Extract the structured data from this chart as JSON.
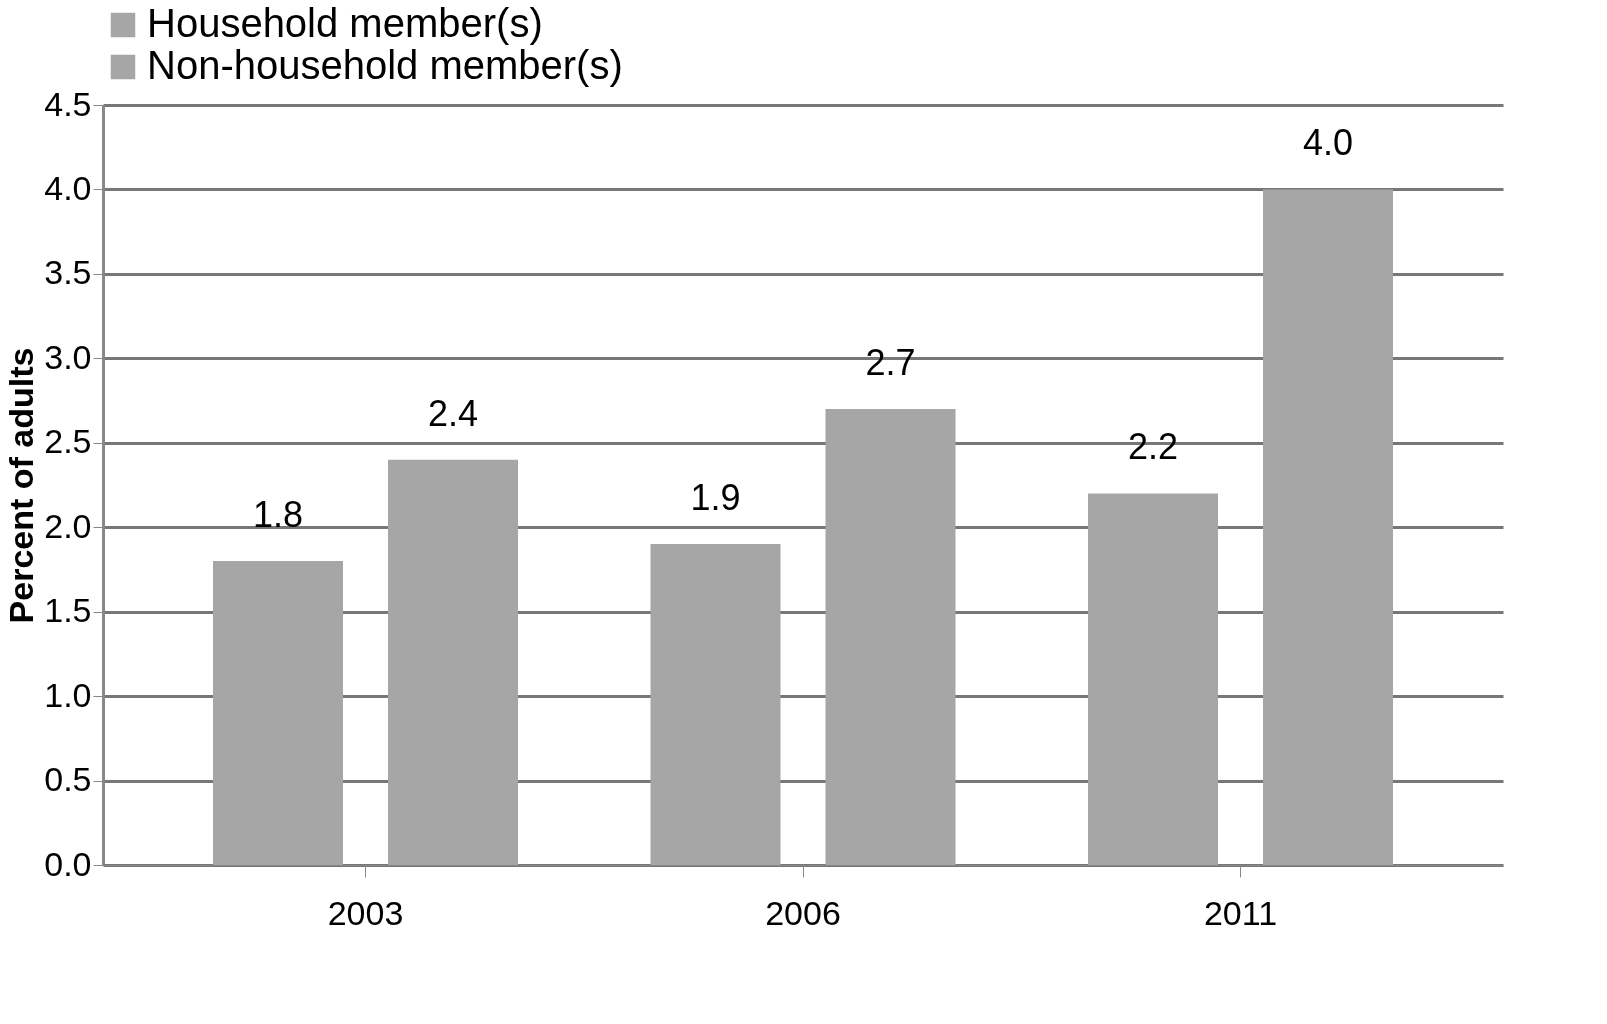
{
  "chart_data": {
    "type": "bar",
    "ylabel": "Percent of adults",
    "categories": [
      "2003",
      "2006",
      "2011"
    ],
    "series": [
      {
        "name": "Household member(s)",
        "color": "#a6a6a6",
        "values": [
          1.8,
          1.9,
          2.2
        ],
        "value_labels": [
          "1.8",
          "1.9",
          "2.2"
        ]
      },
      {
        "name": "Non-household member(s)",
        "color": "#a6a6a6",
        "values": [
          2.4,
          2.7,
          4.0
        ],
        "value_labels": [
          "2.4",
          "2.7",
          "4.0"
        ]
      }
    ],
    "ylim": [
      0,
      4.5
    ],
    "yticks": [
      {
        "value": 0,
        "label": "0.0"
      },
      {
        "value": 0.5,
        "label": "0.5"
      },
      {
        "value": 1,
        "label": "1.0"
      },
      {
        "value": 1.5,
        "label": "1.5"
      },
      {
        "value": 2,
        "label": "2.0"
      },
      {
        "value": 2.5,
        "label": "2.5"
      },
      {
        "value": 3,
        "label": "3.0"
      },
      {
        "value": 3.5,
        "label": "3.5"
      },
      {
        "value": 4,
        "label": "4.0"
      },
      {
        "value": 4.5,
        "label": "4.5"
      }
    ],
    "grid": "y",
    "legend": "top"
  }
}
